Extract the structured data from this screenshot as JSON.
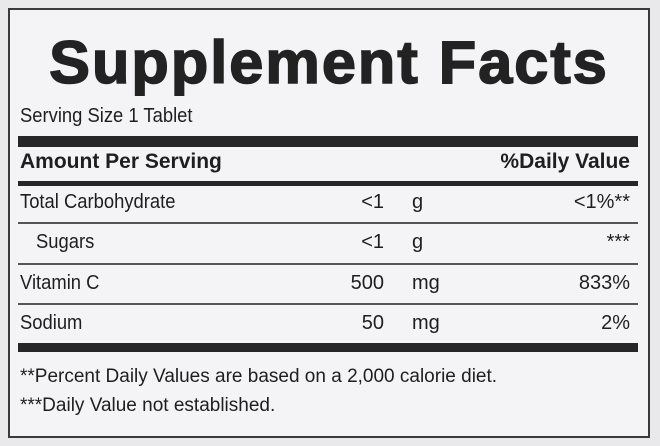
{
  "title": "Supplement Facts",
  "serving_size": "Serving Size 1 Tablet",
  "header": {
    "amount": "Amount Per Serving",
    "daily_value": "%Daily Value"
  },
  "rows": [
    {
      "name": "Total Carbohydrate",
      "amount": "<1",
      "unit": "g",
      "dv": "<1%**"
    },
    {
      "name": "Sugars",
      "amount": "<1",
      "unit": "g",
      "dv": "***"
    },
    {
      "name": "Vitamin C",
      "amount": "500",
      "unit": "mg",
      "dv": "833%"
    },
    {
      "name": "Sodium",
      "amount": "50",
      "unit": "mg",
      "dv": "2%"
    }
  ],
  "footnotes": [
    "**Percent Daily Values are based on a 2,000 calorie diet.",
    "***Daily Value not established."
  ]
}
